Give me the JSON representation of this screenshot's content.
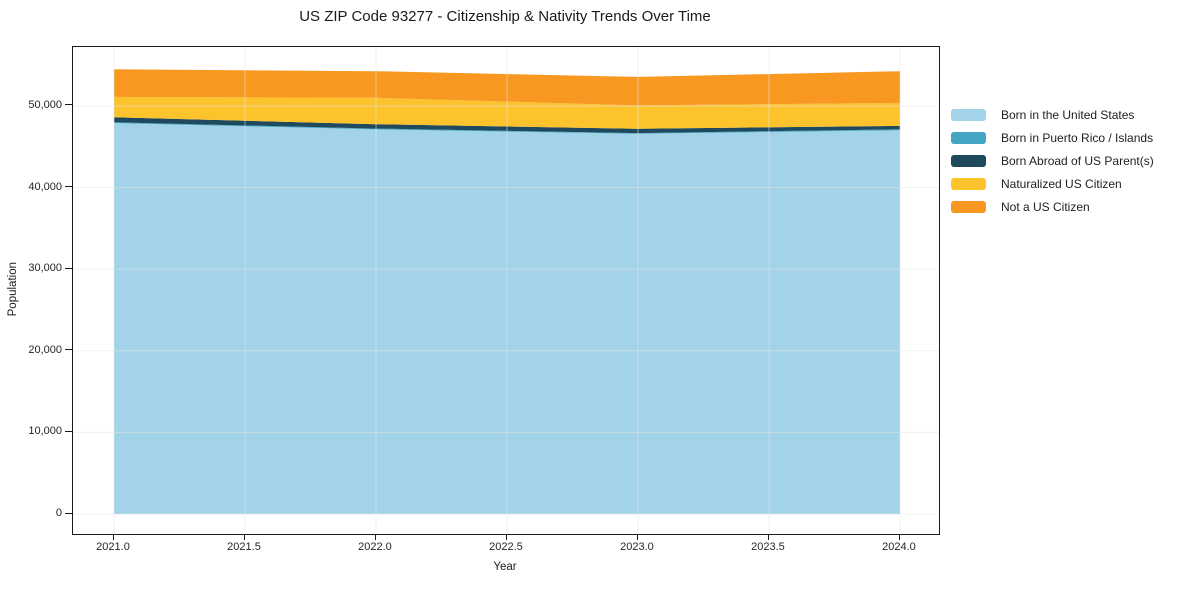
{
  "title": "US ZIP Code 93277 - Citizenship & Nativity Trends Over Time",
  "chart_data": {
    "type": "area",
    "stacked": true,
    "title": "US ZIP Code 93277 - Citizenship & Nativity Trends Over Time",
    "xlabel": "Year",
    "ylabel": "Population",
    "grid": true,
    "legend_position": "right",
    "x": [
      2021,
      2022,
      2023,
      2024
    ],
    "series": [
      {
        "name": "Born in the United States",
        "color": "#a2d3e8",
        "values": [
          47900,
          47130,
          46590,
          47040
        ]
      },
      {
        "name": "Born in Puerto Rico / Islands",
        "color": "#44a5c4",
        "values": [
          100,
          100,
          90,
          100
        ]
      },
      {
        "name": "Born Abroad of US Parent(s)",
        "color": "#1f4a5e",
        "values": [
          620,
          540,
          530,
          420
        ]
      },
      {
        "name": "Naturalized US Citizen",
        "color": "#fcc32d",
        "values": [
          2500,
          3230,
          2860,
          2820
        ]
      },
      {
        "name": "Not a US Citizen",
        "color": "#f89820",
        "values": [
          3380,
          3270,
          3500,
          3890
        ]
      }
    ],
    "stack_totals": [
      54500,
      54270,
      53570,
      54270
    ],
    "x_ticks": [
      {
        "value": 2021.0,
        "label": "2021.0"
      },
      {
        "value": 2021.5,
        "label": "2021.5"
      },
      {
        "value": 2022.0,
        "label": "2022.0"
      },
      {
        "value": 2022.5,
        "label": "2022.5"
      },
      {
        "value": 2023.0,
        "label": "2023.0"
      },
      {
        "value": 2023.5,
        "label": "2023.5"
      },
      {
        "value": 2024.0,
        "label": "2024.0"
      }
    ],
    "y_ticks": [
      {
        "value": 0,
        "label": "0"
      },
      {
        "value": 10000,
        "label": "10,000"
      },
      {
        "value": 20000,
        "label": "20,000"
      },
      {
        "value": 30000,
        "label": "30,000"
      },
      {
        "value": 40000,
        "label": "40,000"
      },
      {
        "value": 50000,
        "label": "50,000"
      }
    ],
    "xlim": [
      2020.8435,
      2024.1489
    ],
    "ylim": [
      -2450,
      57230
    ]
  }
}
